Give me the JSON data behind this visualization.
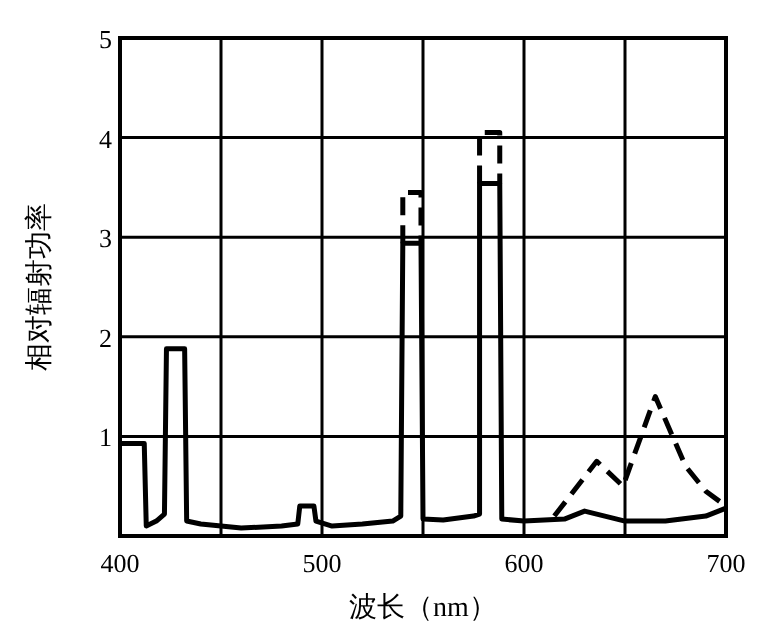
{
  "chart_data": {
    "type": "line",
    "xlabel": "波长（nm）",
    "ylabel": "相对辐射功率",
    "xlim": [
      400,
      700
    ],
    "ylim": [
      0,
      5
    ],
    "xticks": [
      400,
      {
        "value": 450,
        "label": null
      },
      500,
      {
        "value": 550,
        "label": null
      },
      600,
      {
        "value": 650,
        "label": null
      },
      700
    ],
    "yticks": [
      1,
      2,
      3,
      4,
      5
    ],
    "grid": true,
    "series": [
      {
        "color": "#000000",
        "line_style": "solid",
        "x": [
          400,
          412,
          413,
          418,
          422,
          423,
          432,
          433,
          440,
          460,
          480,
          488,
          489,
          496,
          497,
          505,
          520,
          535,
          539,
          540,
          549,
          550,
          560,
          575,
          578,
          578,
          588,
          589,
          600,
          620,
          630,
          640,
          650,
          670,
          690,
          700
        ],
        "values": [
          0.93,
          0.93,
          0.1,
          0.15,
          0.22,
          1.88,
          1.88,
          0.15,
          0.12,
          0.08,
          0.1,
          0.12,
          0.3,
          0.3,
          0.15,
          0.1,
          0.12,
          0.15,
          0.2,
          2.94,
          2.94,
          0.17,
          0.16,
          0.2,
          0.22,
          3.54,
          3.54,
          0.17,
          0.15,
          0.17,
          0.25,
          0.2,
          0.15,
          0.15,
          0.2,
          0.28
        ]
      },
      {
        "color": "#000000",
        "line_style": "dashed",
        "x": [
          540,
          540,
          549,
          549,
          null,
          578,
          578,
          588,
          588,
          null,
          615,
          636,
          649,
          665,
          680,
          690,
          700
        ],
        "values": [
          2.94,
          3.45,
          3.45,
          2.94,
          null,
          3.54,
          4.05,
          4.05,
          3.54,
          null,
          0.2,
          0.75,
          0.5,
          1.4,
          0.7,
          0.45,
          0.3
        ]
      }
    ]
  }
}
